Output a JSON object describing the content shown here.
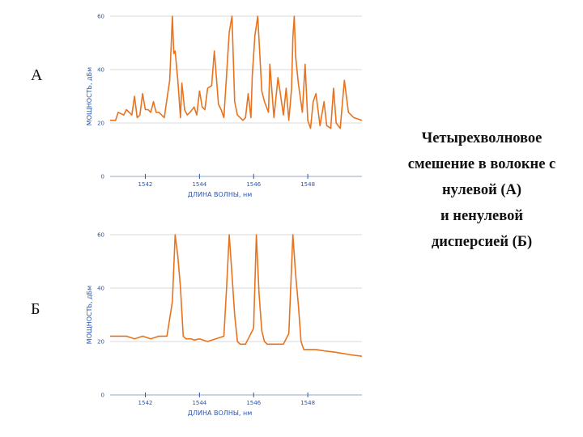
{
  "panel_labels": {
    "a": "А",
    "b": "Б"
  },
  "caption": {
    "line1": "Четырехволновое",
    "line2": "смешение в волокне с",
    "line3": "нулевой (А)",
    "line4": "и ненулевой",
    "line5": "дисперсией (Б)"
  },
  "colors": {
    "series": "#e8731e",
    "axis_text": "#2a55b0",
    "grid": "#dadada",
    "axis": "#9aa7c0"
  },
  "chart_data": [
    {
      "type": "line",
      "panel": "А",
      "xlabel": "ДЛИНА ВОЛНЫ, нм",
      "ylabel": "МОЩНОСТЬ, дБм",
      "xlim": [
        1540.7,
        1550
      ],
      "ylim": [
        0,
        60
      ],
      "xticks": [
        1542,
        1544,
        1546,
        1548
      ],
      "yticks": [
        0,
        20,
        40,
        60
      ],
      "grid": true,
      "series": [
        {
          "x": [
            1540.7,
            1540.9,
            1541.0,
            1541.2,
            1541.3,
            1541.5,
            1541.6,
            1541.7,
            1541.8,
            1541.9,
            1542.0,
            1542.1,
            1542.2,
            1542.3,
            1542.4,
            1542.5,
            1542.6,
            1542.7,
            1542.8,
            1542.9,
            1543.0,
            1543.05,
            1543.1,
            1543.2,
            1543.3,
            1543.35,
            1543.45,
            1543.55,
            1543.65,
            1543.8,
            1543.9,
            1544.0,
            1544.1,
            1544.2,
            1544.3,
            1544.45,
            1544.55,
            1544.7,
            1544.8,
            1544.9,
            1545.0,
            1545.1,
            1545.2,
            1545.3,
            1545.4,
            1545.6,
            1545.7,
            1545.8,
            1545.9,
            1545.95,
            1546.05,
            1546.15,
            1546.3,
            1546.4,
            1546.55,
            1546.6,
            1546.75,
            1546.9,
            1547.0,
            1547.1,
            1547.2,
            1547.3,
            1547.4,
            1547.45,
            1547.5,
            1547.55,
            1547.65,
            1547.8,
            1547.9,
            1548.0,
            1548.1,
            1548.2,
            1548.3,
            1548.45,
            1548.6,
            1548.7,
            1548.85,
            1548.95,
            1549.05,
            1549.2,
            1549.35,
            1549.5,
            1549.7,
            1550.0
          ],
          "y": [
            21,
            21,
            24,
            23,
            25,
            23,
            30,
            22,
            23,
            31,
            25,
            25,
            24,
            28,
            24,
            24,
            23,
            22,
            29,
            36,
            60,
            46,
            47,
            36,
            22,
            35,
            25,
            23,
            24,
            26,
            23,
            32,
            26,
            25,
            33,
            34,
            47,
            27,
            25,
            22,
            38,
            54,
            60,
            28,
            23,
            21,
            22,
            31,
            22,
            38,
            53,
            60,
            32,
            28,
            24,
            42,
            22,
            37,
            30,
            23,
            33,
            21,
            33,
            52,
            60,
            45,
            35,
            24,
            42,
            21,
            18,
            28,
            31,
            19,
            28,
            19,
            18,
            33,
            20,
            18,
            36,
            24,
            22,
            21
          ],
          "ymax_note": "peaks reach top of axis"
        }
      ]
    },
    {
      "type": "line",
      "panel": "Б",
      "xlabel": "ДЛИНА ВОЛНЫ, нм",
      "ylabel": "МОЩНОСТЬ, дБм",
      "xlim": [
        1540.7,
        1550
      ],
      "ylim": [
        0,
        60
      ],
      "xticks": [
        1542,
        1544,
        1546,
        1548
      ],
      "yticks": [
        0,
        20,
        40,
        60
      ],
      "grid": true,
      "series": [
        {
          "x": [
            1540.7,
            1541.0,
            1541.3,
            1541.6,
            1541.9,
            1542.2,
            1542.5,
            1542.8,
            1543.0,
            1543.1,
            1543.2,
            1543.3,
            1543.4,
            1543.5,
            1543.6,
            1543.7,
            1543.8,
            1544.0,
            1544.3,
            1544.6,
            1544.9,
            1545.0,
            1545.1,
            1545.2,
            1545.3,
            1545.4,
            1545.5,
            1545.7,
            1546.0,
            1546.1,
            1546.2,
            1546.3,
            1546.4,
            1546.5,
            1546.6,
            1546.8,
            1547.1,
            1547.3,
            1547.45,
            1547.55,
            1547.65,
            1547.75,
            1547.85,
            1548.0,
            1548.3,
            1548.6,
            1549.0,
            1549.3,
            1549.6,
            1550.0
          ],
          "y": [
            22,
            22,
            22,
            21,
            22,
            21,
            22,
            22,
            35,
            60,
            52,
            40,
            22,
            21,
            21,
            21,
            20.5,
            21,
            20,
            21,
            22,
            40,
            60,
            45,
            30,
            20,
            19,
            19,
            25,
            60,
            38,
            24,
            20,
            19,
            19,
            19,
            19,
            23,
            60,
            45,
            34,
            20,
            17,
            17,
            17,
            16.5,
            16,
            15.5,
            15,
            14.5
          ]
        }
      ]
    }
  ]
}
